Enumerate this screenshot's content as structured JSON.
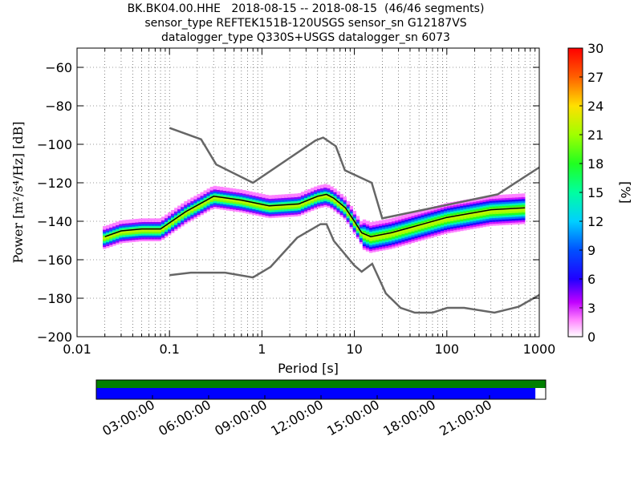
{
  "title": {
    "line1": "BK.BK04.00.HHE   2018-08-15 -- 2018-08-15  (46/46 segments)",
    "line2": "sensor_type REFTEK151B-120USGS sensor_sn G12187VS",
    "line3": "datalogger_type Q330S+USGS datalogger_sn 6073"
  },
  "chart_data": {
    "type": "heatmap",
    "xlabel": "Period [s]",
    "ylabel": "Power [m²/s⁴/Hz] [dB]",
    "x_scale": "log",
    "xlim": [
      0.01,
      1000
    ],
    "ylim": [
      -200,
      -50
    ],
    "grid": true,
    "x_ticks": [
      {
        "value": 0.01,
        "label": "0.01"
      },
      {
        "value": 0.1,
        "label": "0.1"
      },
      {
        "value": 1,
        "label": "1"
      },
      {
        "value": 10,
        "label": "10"
      },
      {
        "value": 100,
        "label": "100"
      },
      {
        "value": 1000,
        "label": "1000"
      }
    ],
    "y_ticks": [
      -60,
      -80,
      -100,
      -120,
      -140,
      -160,
      -180,
      -200
    ],
    "colorbar": {
      "label": "[%]",
      "range": [
        0,
        30
      ],
      "ticks": [
        0,
        3,
        6,
        9,
        12,
        15,
        18,
        21,
        24,
        27,
        30
      ]
    },
    "series": [
      {
        "role": "noise_model_high",
        "x": [
          0.1,
          0.22,
          0.32,
          0.8,
          3.8,
          4.6,
          6.3,
          7.9,
          15.4,
          20,
          354.8,
          1000
        ],
        "y": [
          -91.5,
          -97.4,
          -110.5,
          -120,
          -98,
          -96.5,
          -101,
          -113.5,
          -120,
          -138.5,
          -126,
          -112
        ]
      },
      {
        "role": "noise_model_low",
        "x": [
          0.1,
          0.17,
          0.4,
          0.8,
          1.24,
          2.4,
          4.3,
          5,
          6,
          10,
          12,
          15.6,
          21.9,
          31.6,
          45,
          70,
          101,
          154,
          328,
          600,
          1000
        ],
        "y": [
          -168,
          -166.7,
          -166.7,
          -169.2,
          -163.7,
          -148.6,
          -141.5,
          -141.5,
          -150.2,
          -163,
          -166.2,
          -162.1,
          -177.5,
          -185,
          -187.5,
          -187.5,
          -185,
          -185,
          -187.5,
          -184.4,
          -178.3
        ]
      },
      {
        "role": "mode_psd",
        "x": [
          0.02,
          0.03,
          0.05,
          0.08,
          0.15,
          0.3,
          0.6,
          1.2,
          2.5,
          4,
          5,
          6,
          8,
          10,
          12,
          15,
          25,
          50,
          100,
          300,
          700
        ],
        "y": [
          -148,
          -145,
          -144,
          -144,
          -135,
          -127,
          -129,
          -132,
          -131,
          -127,
          -126,
          -128,
          -133,
          -140,
          -146,
          -148,
          -146,
          -142,
          -138,
          -134,
          -133
        ]
      }
    ],
    "time_coverage": {
      "tick_labels": [
        "03:00:00",
        "06:00:00",
        "09:00:00",
        "12:00:00",
        "15:00:00",
        "18:00:00",
        "21:00:00"
      ],
      "segment_fraction": 1.0,
      "data_fraction": 0.977,
      "segment_color": "#008000",
      "data_color": "#0000ff"
    }
  },
  "colors": {
    "noise_model": "#666666",
    "mode_line": "#000000"
  }
}
